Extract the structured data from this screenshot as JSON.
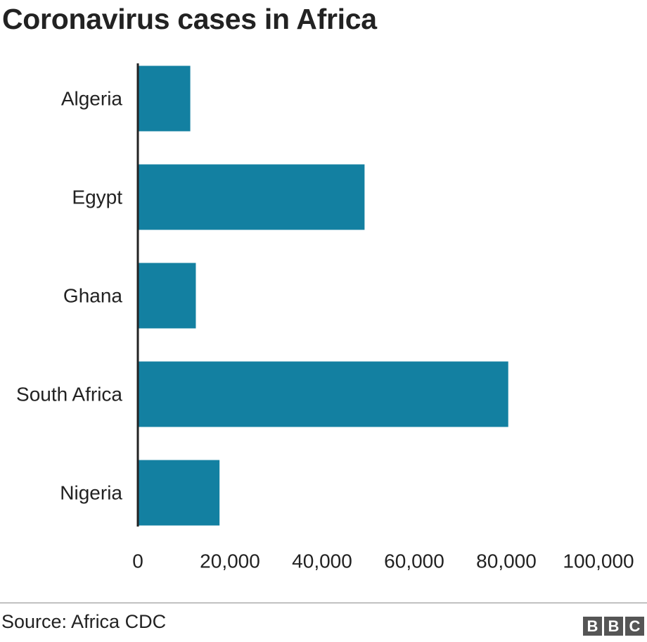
{
  "chart_data": {
    "type": "bar",
    "orientation": "horizontal",
    "title": "Coronavirus cases in Africa",
    "categories": [
      "Algeria",
      "Egypt",
      "Ghana",
      "South Africa",
      "Nigeria"
    ],
    "values": [
      11385,
      49219,
      12590,
      80412,
      17735
    ],
    "xlim": [
      0,
      100000
    ],
    "xticks": [
      "0",
      "20,000",
      "40,000",
      "60,000",
      "80,000",
      "100,000"
    ],
    "xlabel": "",
    "ylabel": "",
    "grid": false,
    "legend": "none",
    "bar_color": "#1380a1"
  },
  "footer": {
    "source": "Source: Africa CDC",
    "logo_letters": [
      "B",
      "B",
      "C"
    ]
  }
}
